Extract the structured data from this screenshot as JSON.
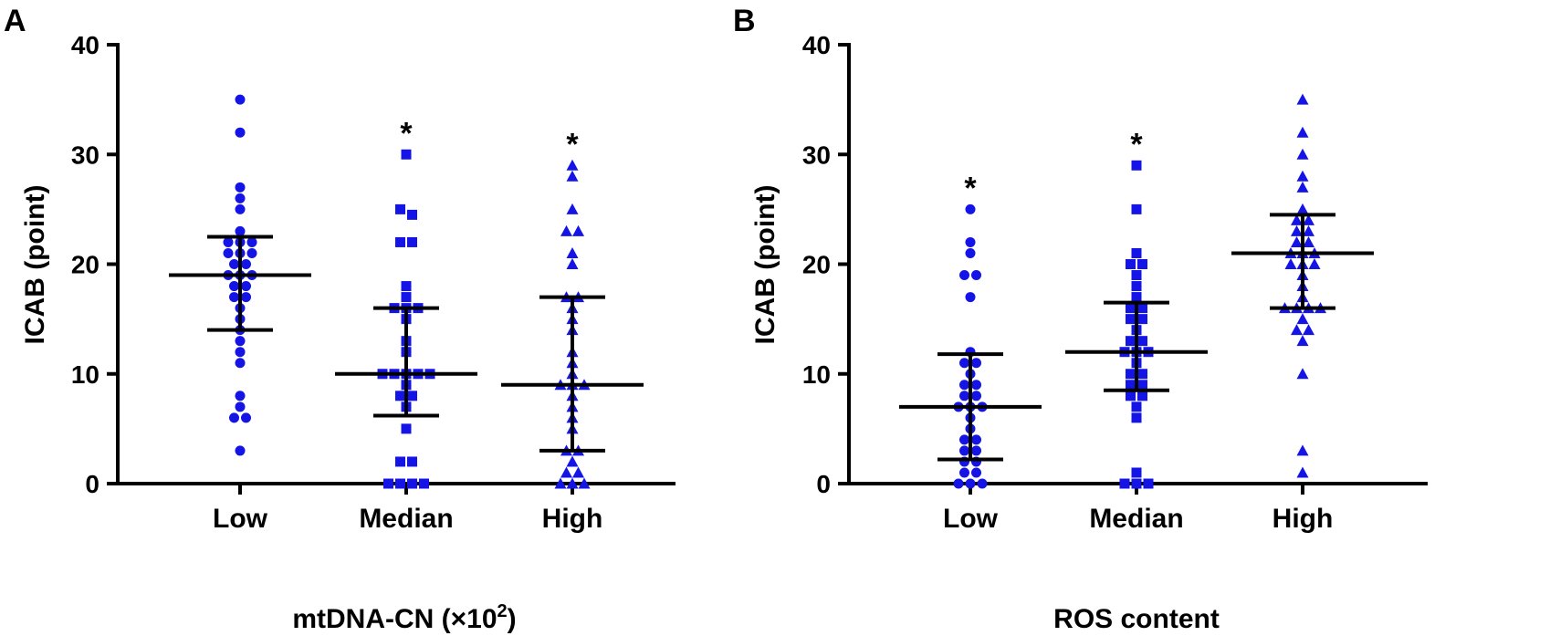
{
  "colors": {
    "points": "#1414e6",
    "lines": "#000000"
  },
  "chart_data": [
    {
      "panel_label": "A",
      "type": "scatter",
      "subtype": "dot-plot-with-median-and-iqr",
      "ylabel": "ICAB (point)",
      "xlabel": "mtDNA-CN (×10",
      "xlabel_sup": "2",
      "xlabel_suffix": ")",
      "ylim": [
        0,
        40
      ],
      "yticks": [
        "0",
        "10",
        "20",
        "30",
        "40"
      ],
      "categories": [
        {
          "label": "Low",
          "marker": "circle",
          "significance": "",
          "median": 19,
          "q1": 14,
          "q3": 22.5,
          "values": [
            35,
            32,
            27,
            26,
            25,
            23,
            22,
            22,
            22,
            21,
            21,
            21,
            20,
            20,
            19,
            19,
            19,
            18,
            18,
            17,
            17,
            16,
            15,
            14,
            13,
            12,
            11,
            8,
            7,
            6,
            6,
            3
          ]
        },
        {
          "label": "Median",
          "marker": "square",
          "significance": "*",
          "median": 10,
          "q1": 6.2,
          "q3": 16,
          "values": [
            30,
            25,
            24.5,
            22,
            22,
            18,
            17,
            16,
            16,
            16,
            15,
            13,
            12,
            10,
            10,
            10,
            10,
            10,
            9,
            8,
            8,
            7,
            5,
            2,
            2,
            0,
            0,
            0,
            0
          ]
        },
        {
          "label": "High",
          "marker": "triangle",
          "significance": "*",
          "median": 9,
          "q1": 3,
          "q3": 17,
          "values": [
            29,
            28,
            25,
            23,
            23,
            21,
            20,
            17,
            17,
            16,
            15,
            14,
            12,
            11,
            10,
            9,
            9,
            9,
            8,
            7,
            6,
            5,
            3,
            3,
            2,
            1,
            1,
            0,
            0,
            0
          ]
        }
      ]
    },
    {
      "panel_label": "B",
      "type": "scatter",
      "subtype": "dot-plot-with-median-and-iqr",
      "ylabel": "ICAB (point)",
      "xlabel": "ROS content",
      "ylim": [
        0,
        40
      ],
      "yticks": [
        "0",
        "10",
        "20",
        "30",
        "40"
      ],
      "categories": [
        {
          "label": "Low",
          "marker": "circle",
          "significance": "*",
          "median": 7,
          "q1": 2.2,
          "q3": 11.8,
          "values": [
            25,
            22,
            21,
            19,
            19,
            17,
            12,
            11,
            11,
            10,
            9,
            9,
            8,
            8,
            7,
            7,
            7,
            6,
            5,
            4,
            4,
            3,
            3,
            2,
            2,
            1,
            1,
            0,
            0,
            0
          ]
        },
        {
          "label": "Median",
          "marker": "square",
          "significance": "*",
          "median": 12,
          "q1": 8.5,
          "q3": 16.5,
          "values": [
            29,
            25,
            21,
            20,
            20,
            19,
            18,
            17,
            16,
            16,
            15,
            15,
            14,
            13,
            13,
            12,
            12,
            12,
            11,
            10,
            10,
            9,
            9,
            8,
            8,
            7,
            6,
            1,
            0,
            0,
            0
          ]
        },
        {
          "label": "High",
          "marker": "triangle",
          "significance": "",
          "median": 21,
          "q1": 16,
          "q3": 24.5,
          "values": [
            35,
            32,
            30,
            28,
            27,
            25,
            24,
            24,
            23,
            23,
            22,
            22,
            21,
            21,
            21,
            20,
            20,
            20,
            19,
            18,
            17,
            16,
            16,
            16,
            16,
            15,
            14,
            14,
            13,
            10,
            3,
            1
          ]
        }
      ]
    }
  ]
}
